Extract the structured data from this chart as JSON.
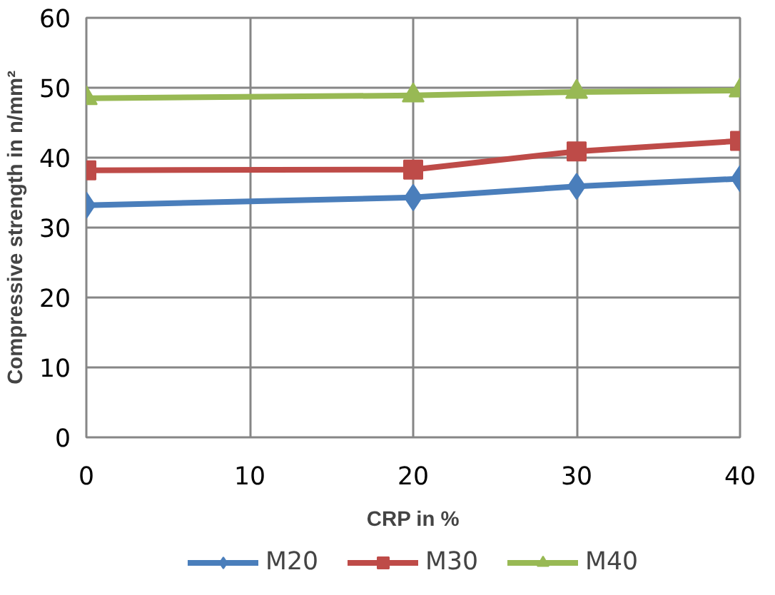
{
  "chart_data": {
    "type": "line",
    "xlabel": "CRP in %",
    "ylabel": "Compressive strength in n/mm²",
    "x": [
      0,
      20,
      30,
      40
    ],
    "series": [
      {
        "name": "M20",
        "color": "#4a7ebb",
        "marker": "diamond",
        "values": [
          33.2,
          34.3,
          35.9,
          37.0
        ]
      },
      {
        "name": "M30",
        "color": "#be4b48",
        "marker": "square",
        "values": [
          38.2,
          38.3,
          40.9,
          42.4
        ]
      },
      {
        "name": "M40",
        "color": "#98b954",
        "marker": "triangle",
        "values": [
          48.5,
          48.9,
          49.4,
          49.6
        ]
      }
    ],
    "xlim": [
      0,
      40
    ],
    "xticks": [
      0,
      10,
      20,
      30,
      40
    ],
    "ylim": [
      0,
      60
    ],
    "yticks": [
      0,
      10,
      20,
      30,
      40,
      50,
      60
    ],
    "grid": true,
    "legend": "bottom",
    "line_style": "solid"
  }
}
